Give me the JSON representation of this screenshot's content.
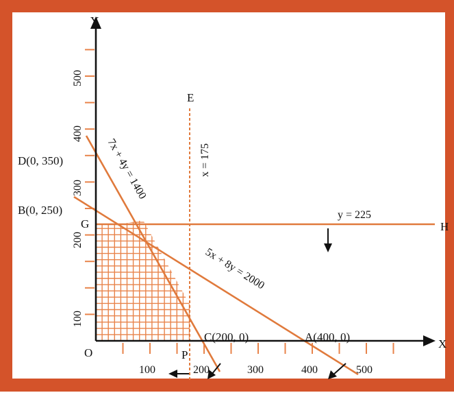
{
  "colors": {
    "frame": "#d4532a",
    "line": "#e07a3c",
    "grid": "#e8834a",
    "axis": "#111111",
    "background": "#ffffff"
  },
  "axes": {
    "x_label": "X",
    "y_label": "Y",
    "origin_label": "O",
    "x_ticks": [
      "100",
      "200",
      "300",
      "400",
      "500"
    ],
    "y_ticks": [
      "100",
      "200",
      "300",
      "400",
      "500"
    ]
  },
  "points": {
    "D": "D(0, 350)",
    "B": "B(0, 250)",
    "G": "G",
    "C": "C(200, 0)",
    "A": "A(400, 0)",
    "P": "P",
    "E": "E",
    "H": "H"
  },
  "constraints": {
    "line1": "7x + 4y = 1400",
    "line2": "5x + 8y = 2000",
    "line3": "x = 175",
    "line4": "y = 225"
  },
  "arrows": [
    "down-arrow",
    "left-arrow",
    "down-left-arrow",
    "down-left-arrow"
  ]
}
